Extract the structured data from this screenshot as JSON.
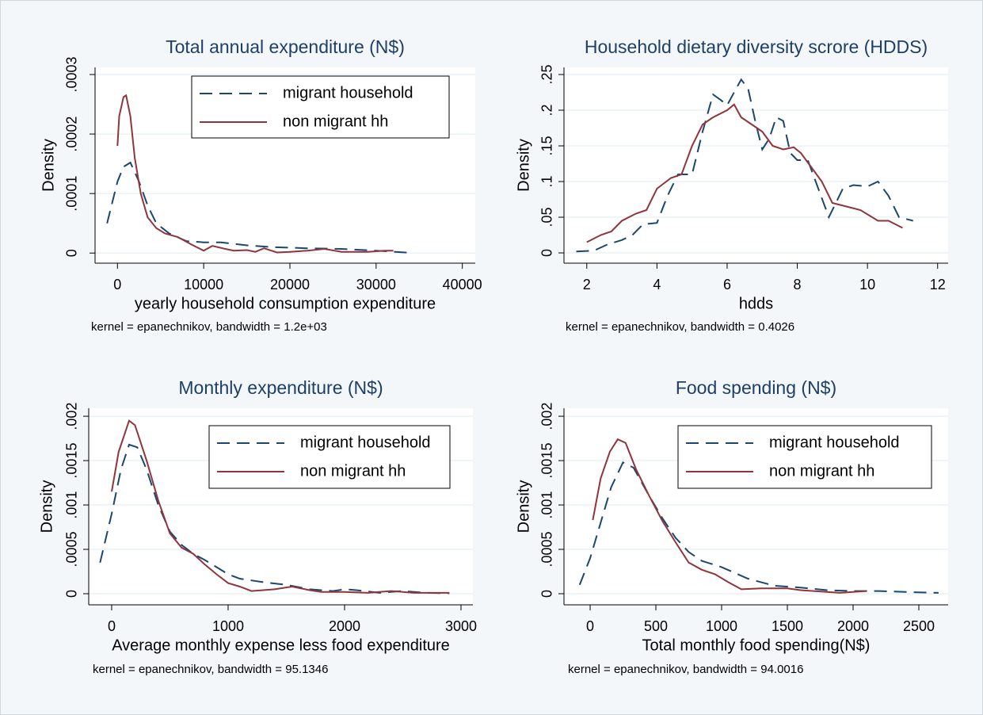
{
  "chart_data": [
    {
      "type": "line",
      "title": "Total annual expenditure (N$)",
      "x_label": "yearly household consumption expenditure",
      "y_label": "Density",
      "note": "kernel = epanechnikov, bandwidth =  1.2e+03",
      "grid": true,
      "legend": "top-right",
      "xlim": [
        -2600,
        41500
      ],
      "xticks": [
        0,
        10000,
        20000,
        30000,
        40000
      ],
      "ylim": [
        -1.7e-05,
        0.000312
      ],
      "yticks": [
        0,
        {
          "value": 0.0001,
          "label": ".0001"
        },
        {
          "value": 0.0002,
          "label": ".0002"
        },
        {
          "value": 0.0003,
          "label": ".0003"
        }
      ],
      "series": [
        {
          "name": "migrant household",
          "color": "#1a476f",
          "line_style": "dashed",
          "x": [
            -1200,
            0,
            700,
            1500,
            2500,
            3500,
            4500,
            6000,
            8000,
            10000,
            12000,
            15000,
            18000,
            22000,
            26000,
            30000,
            34000
          ],
          "values": [
            5e-05,
            0.00012,
            0.000145,
            0.000152,
            0.00012,
            8e-05,
            5e-05,
            3.3e-05,
            2e-05,
            1.8e-05,
            1.8e-05,
            1.3e-05,
            1e-05,
            8e-06,
            7e-06,
            4e-06,
            5e-07
          ]
        },
        {
          "name": "non migrant hh",
          "color": "#90353b",
          "line_style": "solid",
          "x": [
            0,
            200,
            700,
            1000,
            1500,
            2000,
            2700,
            3500,
            4500,
            5500,
            7000,
            8500,
            10000,
            11000,
            12500,
            13500,
            15000,
            16000,
            17000,
            18500,
            20000,
            22000,
            24000,
            26000,
            29000,
            31000,
            32000
          ],
          "values": [
            0.00018,
            0.00023,
            0.000262,
            0.000265,
            0.00023,
            0.00016,
            0.0001,
            6e-05,
            4.2e-05,
            3.3e-05,
            2.7e-05,
            1.5e-05,
            4e-06,
            1.2e-05,
            7e-06,
            4e-06,
            5e-06,
            2e-06,
            8e-06,
            1e-06,
            2e-06,
            4e-06,
            7e-06,
            2e-06,
            2e-06,
            4e-06,
            4e-06
          ]
        }
      ]
    },
    {
      "type": "line",
      "title": "Household dietary diversity scrore (HDDS)",
      "x_label": "hdds",
      "y_label": "Density",
      "note": "kernel = epanechnikov, bandwidth = 0.4026",
      "grid": true,
      "xlim": [
        1.35,
        12.3
      ],
      "xticks": [
        2,
        4,
        6,
        8,
        10,
        12
      ],
      "ylim": [
        -0.0144,
        0.26
      ],
      "yticks": [
        0,
        {
          "value": 0.05,
          "label": ".05"
        },
        {
          "value": 0.1,
          "label": ".1"
        },
        {
          "value": 0.15,
          "label": ".15"
        },
        {
          "value": 0.2,
          "label": ".2"
        },
        {
          "value": 0.25,
          "label": ".25"
        }
      ],
      "series": [
        {
          "color": "#1a476f",
          "line_style": "dashed",
          "x": [
            1.7,
            2.2,
            2.6,
            3,
            3.3,
            3.6,
            4,
            4.3,
            4.6,
            5,
            5.3,
            5.6,
            5.8,
            6,
            6.2,
            6.4,
            6.6,
            6.8,
            7,
            7.2,
            7.4,
            7.6,
            7.8,
            8,
            8.3,
            8.6,
            8.9,
            9.3,
            9.6,
            10,
            10.3,
            10.6,
            10.9,
            11.3
          ],
          "values": [
            0.002,
            0.003,
            0.012,
            0.018,
            0.025,
            0.04,
            0.042,
            0.08,
            0.11,
            0.11,
            0.17,
            0.222,
            0.215,
            0.207,
            0.225,
            0.243,
            0.23,
            0.185,
            0.145,
            0.16,
            0.19,
            0.185,
            0.14,
            0.13,
            0.13,
            0.09,
            0.05,
            0.09,
            0.095,
            0.093,
            0.1,
            0.08,
            0.05,
            0.045
          ]
        },
        {
          "color": "#90353b",
          "line_style": "solid",
          "x": [
            2,
            2.4,
            2.7,
            3,
            3.4,
            3.7,
            4,
            4.4,
            4.7,
            5,
            5.3,
            5.6,
            6,
            6.2,
            6.4,
            6.7,
            7,
            7.3,
            7.6,
            7.9,
            8.1,
            8.4,
            8.7,
            9,
            9.4,
            9.8,
            10.3,
            10.6,
            11
          ],
          "values": [
            0.015,
            0.025,
            0.03,
            0.045,
            0.055,
            0.06,
            0.09,
            0.105,
            0.11,
            0.15,
            0.18,
            0.19,
            0.2,
            0.208,
            0.19,
            0.18,
            0.17,
            0.15,
            0.145,
            0.148,
            0.14,
            0.12,
            0.1,
            0.07,
            0.065,
            0.06,
            0.045,
            0.045,
            0.035
          ]
        }
      ]
    },
    {
      "type": "line",
      "title": "Monthly expenditure (N$)",
      "x_label": "Average monthly expense less food expenditure",
      "y_label": "Density",
      "note": "kernel = epanechnikov, bandwidth = 95.1346",
      "grid": true,
      "legend": "top-right",
      "xlim": [
        -197,
        3102
      ],
      "xticks": [
        0,
        1000,
        2000,
        3000
      ],
      "ylim": [
        -0.000125,
        0.00209
      ],
      "yticks": [
        0,
        {
          "value": 0.0005,
          "label": ".0005"
        },
        {
          "value": 0.001,
          "label": ".001"
        },
        {
          "value": 0.0015,
          "label": ".0015"
        },
        {
          "value": 0.002,
          "label": ".002"
        }
      ],
      "series": [
        {
          "name": "migrant household",
          "color": "#1a476f",
          "line_style": "dashed",
          "x": [
            -100,
            0,
            80,
            150,
            220,
            300,
            400,
            500,
            600,
            700,
            800,
            900,
            1000,
            1100,
            1300,
            1500,
            1700,
            1900,
            2000,
            2100,
            2300,
            2500,
            2700,
            2900
          ],
          "values": [
            0.00035,
            0.0009,
            0.0014,
            0.00168,
            0.00165,
            0.0014,
            0.001,
            0.0007,
            0.00055,
            0.00045,
            0.00038,
            0.0003,
            0.00022,
            0.00017,
            0.00013,
            0.0001,
            5e-05,
            3e-05,
            5e-05,
            4e-05,
            1e-05,
            3e-05,
            1e-05,
            5e-06
          ]
        },
        {
          "name": "non migrant hh",
          "color": "#90353b",
          "line_style": "solid",
          "x": [
            0,
            60,
            150,
            200,
            300,
            400,
            500,
            600,
            700,
            800,
            900,
            1000,
            1100,
            1200,
            1300,
            1400,
            1550,
            1700,
            1800,
            2000,
            2200,
            2400,
            2600,
            2800,
            2900
          ],
          "values": [
            0.00115,
            0.0016,
            0.00195,
            0.0019,
            0.0015,
            0.00105,
            0.00068,
            0.00052,
            0.00045,
            0.00033,
            0.00022,
            0.00012,
            8e-05,
            3e-05,
            4e-05,
            5e-05,
            8e-05,
            4e-05,
            2e-05,
            2e-05,
            1e-05,
            3e-05,
            1e-05,
            1e-05,
            1e-05
          ]
        }
      ]
    },
    {
      "type": "line",
      "title": "Food spending (N$)",
      "x_label": "Total monthly food spending(N$)",
      "y_label": "Density",
      "note": "kernel = epanechnikov, bandwidth = 94.0016",
      "grid": true,
      "legend": "top-right",
      "xlim": [
        -199,
        2723
      ],
      "xticks": [
        0,
        500,
        1000,
        1500,
        2000,
        2500
      ],
      "ylim": [
        -0.000125,
        0.00209
      ],
      "yticks": [
        0,
        {
          "value": 0.0005,
          "label": ".0005"
        },
        {
          "value": 0.001,
          "label": ".001"
        },
        {
          "value": 0.0015,
          "label": ".0015"
        },
        {
          "value": 0.002,
          "label": ".002"
        }
      ],
      "series": [
        {
          "name": "migrant household",
          "color": "#1a476f",
          "line_style": "dashed",
          "x": [
            -80,
            0,
            80,
            160,
            250,
            330,
            450,
            550,
            650,
            750,
            850,
            1000,
            1200,
            1400,
            1600,
            1800,
            2000,
            2200,
            2400,
            2650
          ],
          "values": [
            0.0001,
            0.0004,
            0.0008,
            0.0012,
            0.00148,
            0.00142,
            0.0011,
            0.00085,
            0.00063,
            0.00047,
            0.00037,
            0.0003,
            0.00017,
            9e-05,
            7e-05,
            4e-05,
            3e-05,
            3e-05,
            2e-05,
            1e-05
          ]
        },
        {
          "name": "non migrant hh",
          "color": "#90353b",
          "line_style": "solid",
          "x": [
            20,
            80,
            150,
            210,
            270,
            350,
            450,
            550,
            650,
            750,
            850,
            950,
            1050,
            1150,
            1300,
            1500,
            1600,
            1800,
            1900,
            2000,
            2100
          ],
          "values": [
            0.00083,
            0.0013,
            0.0016,
            0.00174,
            0.0017,
            0.0014,
            0.0011,
            0.00082,
            0.00058,
            0.00035,
            0.00027,
            0.00022,
            0.00013,
            5e-05,
            6e-05,
            6e-05,
            4e-05,
            2e-05,
            1e-05,
            2e-05,
            3e-05
          ]
        }
      ]
    }
  ]
}
